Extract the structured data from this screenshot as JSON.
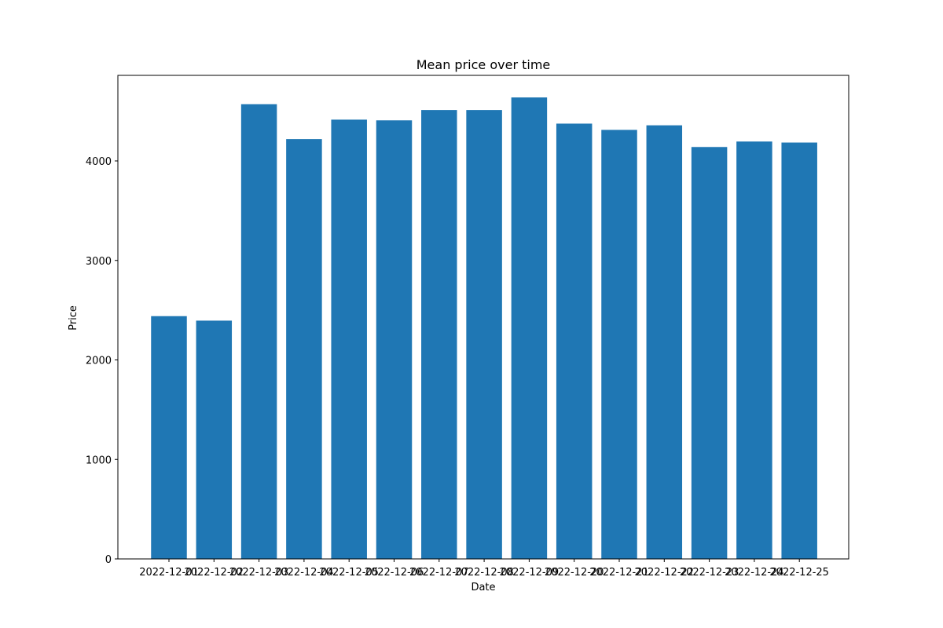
{
  "chart_data": {
    "type": "bar",
    "title": "Mean price over time",
    "xlabel": "Date",
    "ylabel": "Price",
    "categories": [
      "2022-12-01",
      "2022-12-02",
      "2022-12-03",
      "2022-12-04",
      "2022-12-05",
      "2022-12-06",
      "2022-12-07",
      "2022-12-08",
      "2022-12-09",
      "2022-12-20",
      "2022-12-21",
      "2022-12-22",
      "2022-12-23",
      "2022-12-24",
      "2022-12-25"
    ],
    "values": [
      2440,
      2395,
      4570,
      4220,
      4415,
      4408,
      4512,
      4512,
      4638,
      4375,
      4312,
      4358,
      4140,
      4195,
      4185
    ],
    "ylim": [
      0,
      4860
    ],
    "yticks": [
      0,
      1000,
      2000,
      3000,
      4000
    ],
    "bar_color": "#1f77b4",
    "grid": false,
    "legend": "none"
  }
}
